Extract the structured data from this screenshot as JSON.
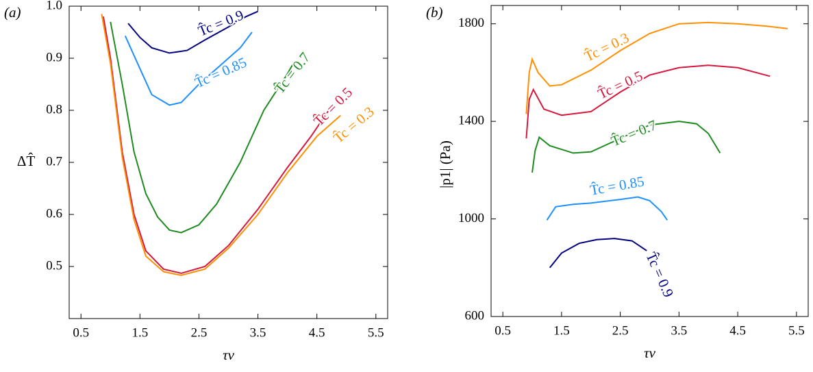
{
  "chart_data": [
    {
      "type": "line",
      "panel_label": "(a)",
      "xlabel": "τν",
      "ylabel": "ΔT̂",
      "xlim": [
        0.3,
        5.7
      ],
      "ylim": [
        0.4,
        1.0
      ],
      "xticks": [
        0.5,
        1.5,
        2.5,
        3.5,
        4.5,
        5.5
      ],
      "yticks": [
        0.5,
        0.6,
        0.7,
        0.8,
        0.9,
        {
          "value": 1,
          "label": "1.0"
        }
      ],
      "series": [
        {
          "name": "T̂c = 0.9",
          "color": "#00007f",
          "x": [
            1.3,
            1.5,
            1.7,
            2.0,
            2.3,
            2.6,
            3.0,
            3.3,
            3.5
          ],
          "values": [
            0.967,
            0.94,
            0.92,
            0.91,
            0.915,
            0.935,
            0.96,
            0.98,
            0.99
          ]
        },
        {
          "name": "T̂c = 0.85",
          "color": "#1e8fff",
          "x": [
            1.25,
            1.5,
            1.7,
            2.0,
            2.2,
            2.5,
            2.9,
            3.2,
            3.4
          ],
          "values": [
            0.943,
            0.88,
            0.83,
            0.81,
            0.815,
            0.85,
            0.89,
            0.92,
            0.95
          ]
        },
        {
          "name": "T̂c = 0.7",
          "color": "#1f8a1f",
          "x": [
            1.0,
            1.2,
            1.4,
            1.6,
            1.8,
            2.0,
            2.2,
            2.5,
            2.8,
            3.2,
            3.6,
            4.0,
            4.1
          ],
          "values": [
            0.97,
            0.85,
            0.72,
            0.64,
            0.595,
            0.57,
            0.565,
            0.58,
            0.62,
            0.7,
            0.8,
            0.87,
            0.89
          ]
        },
        {
          "name": "T̂c = 0.5",
          "color": "#d6163c",
          "x": [
            0.88,
            1.0,
            1.2,
            1.4,
            1.6,
            1.9,
            2.2,
            2.6,
            3.0,
            3.5,
            4.0,
            4.4,
            4.7
          ],
          "values": [
            0.98,
            0.9,
            0.72,
            0.6,
            0.53,
            0.495,
            0.487,
            0.5,
            0.54,
            0.61,
            0.69,
            0.75,
            0.8
          ]
        },
        {
          "name": "T̂c = 0.3",
          "color": "#ff8f00",
          "x": [
            0.85,
            1.0,
            1.2,
            1.4,
            1.6,
            1.9,
            2.2,
            2.6,
            3.0,
            3.5,
            4.0,
            4.5,
            4.9
          ],
          "values": [
            0.985,
            0.89,
            0.71,
            0.59,
            0.52,
            0.49,
            0.483,
            0.495,
            0.535,
            0.6,
            0.68,
            0.75,
            0.79
          ]
        }
      ]
    },
    {
      "type": "line",
      "panel_label": "(b)",
      "xlabel": "τν",
      "ylabel": "|p1| (Pa)",
      "xlim": [
        0.3,
        5.7
      ],
      "ylim": [
        600,
        1875
      ],
      "xticks": [
        0.5,
        1.5,
        2.5,
        3.5,
        4.5,
        5.5
      ],
      "yticks": [
        600,
        1000,
        1400,
        1800
      ],
      "series": [
        {
          "name": "T̂c = 0.3",
          "color": "#ff8f00",
          "x": [
            0.9,
            0.95,
            1.0,
            1.1,
            1.3,
            1.5,
            2.0,
            2.5,
            3.0,
            3.5,
            4.0,
            4.5,
            5.0,
            5.35
          ],
          "values": [
            1430,
            1600,
            1655,
            1600,
            1545,
            1550,
            1610,
            1690,
            1760,
            1800,
            1805,
            1800,
            1790,
            1780
          ]
        },
        {
          "name": "T̂c = 0.5",
          "color": "#d6163c",
          "x": [
            0.9,
            0.95,
            1.02,
            1.2,
            1.5,
            2.0,
            2.5,
            3.0,
            3.5,
            4.0,
            4.5,
            5.05
          ],
          "values": [
            1330,
            1490,
            1530,
            1450,
            1425,
            1440,
            1520,
            1590,
            1620,
            1630,
            1620,
            1585
          ]
        },
        {
          "name": "T̂c = 0.7",
          "color": "#1f8a1f",
          "x": [
            1.0,
            1.05,
            1.12,
            1.3,
            1.7,
            2.0,
            2.5,
            3.0,
            3.5,
            3.8,
            4.0,
            4.2
          ],
          "values": [
            1190,
            1280,
            1335,
            1300,
            1270,
            1275,
            1330,
            1385,
            1400,
            1390,
            1350,
            1270
          ]
        },
        {
          "name": "T̂c = 0.85",
          "color": "#1e8fff",
          "x": [
            1.25,
            1.4,
            1.7,
            2.0,
            2.5,
            2.8,
            3.0,
            3.2,
            3.3
          ],
          "values": [
            995,
            1050,
            1060,
            1065,
            1080,
            1090,
            1075,
            1030,
            995
          ]
        },
        {
          "name": "T̂c = 0.9",
          "color": "#00007f",
          "x": [
            1.3,
            1.5,
            1.8,
            2.1,
            2.4,
            2.7,
            2.95
          ],
          "values": [
            800,
            860,
            900,
            915,
            920,
            910,
            870
          ]
        }
      ]
    }
  ]
}
